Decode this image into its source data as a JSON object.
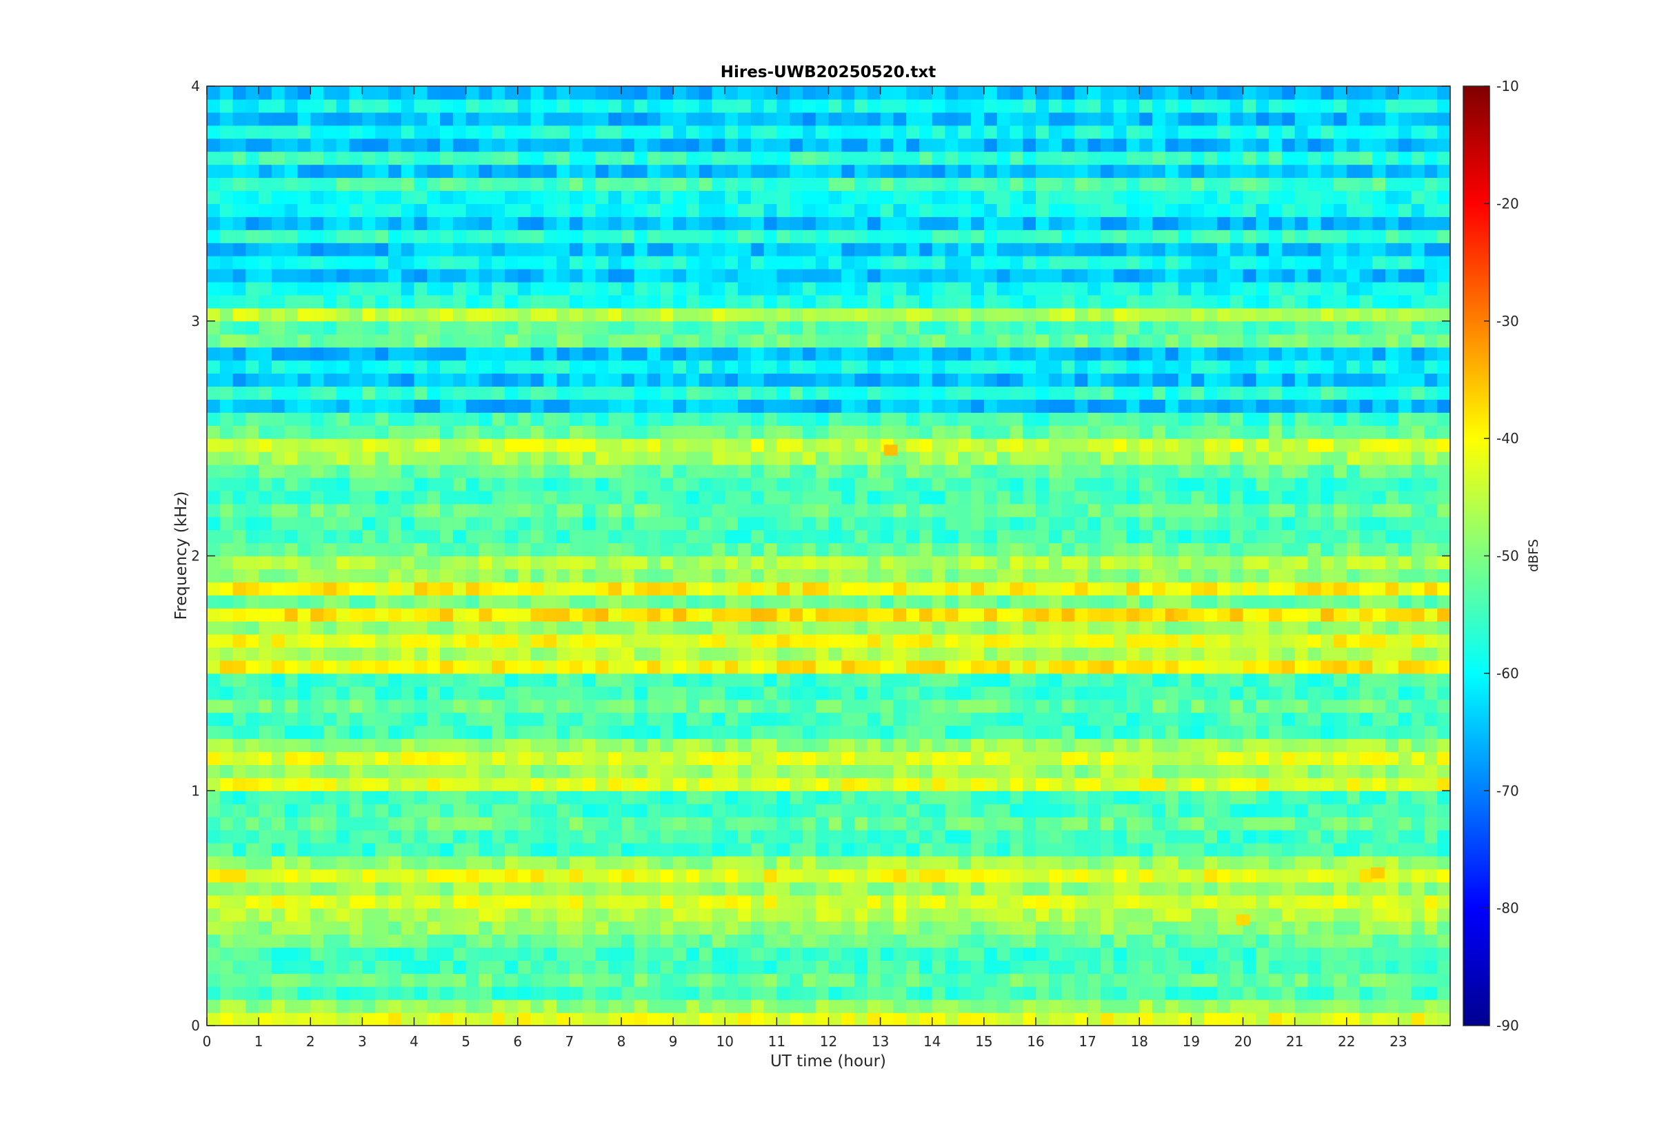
{
  "chart_data": {
    "type": "heatmap",
    "title": "Hires-UWB20250520.txt",
    "xlabel": "UT time (hour)",
    "ylabel": "Frequency (kHz)",
    "xlim": [
      0,
      24
    ],
    "ylim": [
      0,
      4
    ],
    "x_ticks": [
      "0",
      "1",
      "2",
      "3",
      "4",
      "5",
      "6",
      "7",
      "8",
      "9",
      "10",
      "11",
      "12",
      "13",
      "14",
      "15",
      "16",
      "17",
      "18",
      "19",
      "20",
      "21",
      "22",
      "23"
    ],
    "y_ticks": [
      "0",
      "1",
      "2",
      "3",
      "4"
    ],
    "colorbar": {
      "label": "dBFS",
      "range": [
        -90,
        -10
      ],
      "colormap": "jet",
      "ticks": [
        "-10",
        "-20",
        "-30",
        "-40",
        "-50",
        "-60",
        "-70",
        "-80",
        "-90"
      ]
    },
    "band_levels_dBFS": {
      "description_freq_kHz": [
        0.05,
        0.45,
        0.55,
        0.65,
        1.05,
        1.15,
        1.55,
        1.65,
        1.75,
        1.85,
        1.95,
        2.45,
        2.95,
        3.05,
        3.55
      ],
      "levels": [
        -42,
        -43,
        -43,
        -41,
        -42,
        -43,
        -38,
        -41,
        -41,
        -43,
        -44,
        -40,
        -44,
        -45,
        -52
      ]
    },
    "background_level_dBFS": -58,
    "notable_hotspots": [
      {
        "x": 13.2,
        "y": 2.45,
        "value": -35
      },
      {
        "x": 22.6,
        "y": 0.65,
        "value": -36
      },
      {
        "x": 20.0,
        "y": 0.45,
        "value": -37
      },
      {
        "x": 18.8,
        "y": 1.75,
        "value": -36
      }
    ]
  }
}
